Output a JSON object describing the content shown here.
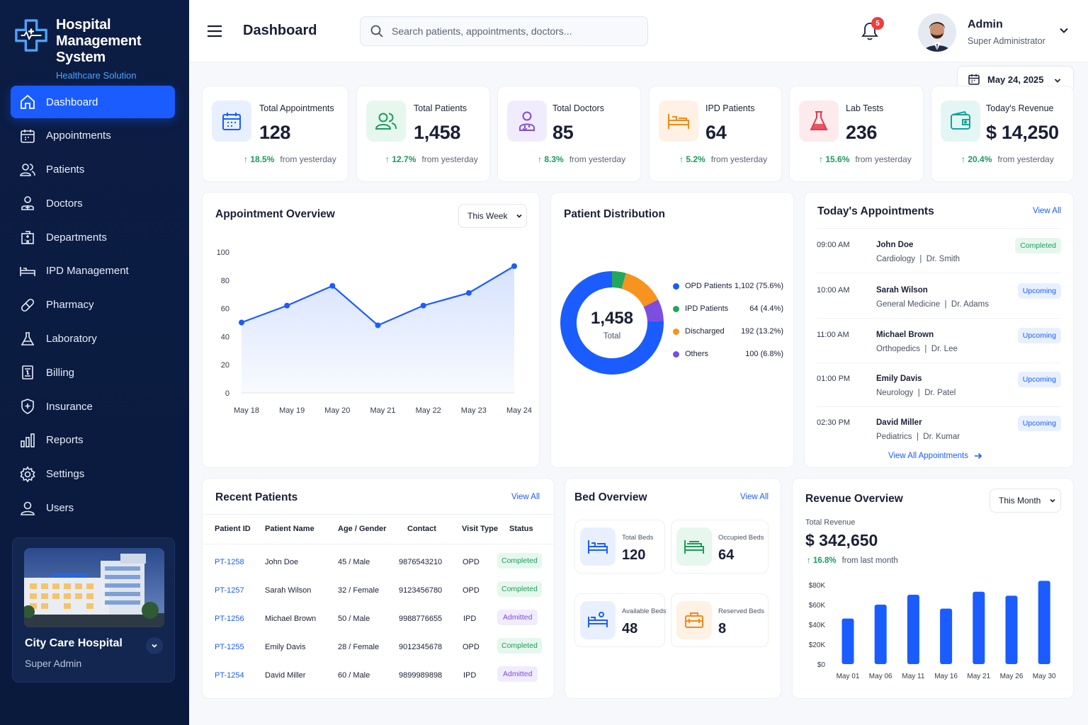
{
  "app": {
    "title_line1": "Hospital",
    "title_line2": "Management System",
    "subtitle": "Healthcare Solution"
  },
  "sidebar": {
    "items": [
      {
        "label": "Dashboard",
        "icon": "home-icon"
      },
      {
        "label": "Appointments",
        "icon": "calendar-icon"
      },
      {
        "label": "Patients",
        "icon": "users-icon"
      },
      {
        "label": "Doctors",
        "icon": "doctor-icon"
      },
      {
        "label": "Departments",
        "icon": "building-icon"
      },
      {
        "label": "IPD Management",
        "icon": "bed-icon"
      },
      {
        "label": "Pharmacy",
        "icon": "pill-icon"
      },
      {
        "label": "Laboratory",
        "icon": "flask-icon"
      },
      {
        "label": "Billing",
        "icon": "invoice-icon"
      },
      {
        "label": "Insurance",
        "icon": "shield-icon"
      },
      {
        "label": "Reports",
        "icon": "bar-chart-icon"
      },
      {
        "label": "Settings",
        "icon": "gear-icon"
      },
      {
        "label": "Users",
        "icon": "user-icon"
      }
    ],
    "hospital": {
      "name": "City Care Hospital",
      "role": "Super Admin"
    }
  },
  "header": {
    "page_title": "Dashboard",
    "search_placeholder": "Search patients, appointments, doctors...",
    "notifications": "5",
    "user_name": "Admin",
    "user_role": "Super Administrator",
    "date": "May 24, 2025"
  },
  "stats": [
    {
      "label": "Total Appointments",
      "value": "128",
      "trend": "18.5%",
      "trend_text": "from yesterday",
      "color": "#1a5cff"
    },
    {
      "label": "Total Patients",
      "value": "1,458",
      "trend": "12.7%",
      "trend_text": "from yesterday",
      "color": "#1d9c5a"
    },
    {
      "label": "Total Doctors",
      "value": "85",
      "trend": "8.3%",
      "trend_text": "from yesterday",
      "color": "#7c4dde"
    },
    {
      "label": "IPD Patients",
      "value": "64",
      "trend": "5.2%",
      "trend_text": "from yesterday",
      "color": "#f08a1c"
    },
    {
      "label": "Lab Tests",
      "value": "236",
      "trend": "15.6%",
      "trend_text": "from yesterday",
      "color": "#e5394a"
    },
    {
      "label": "Today's Revenue",
      "value": "$ 14,250",
      "trend": "20.4%",
      "trend_text": "from yesterday",
      "color": "#14a39a"
    }
  ],
  "appointment_overview": {
    "title": "Appointment Overview",
    "range": "This Week"
  },
  "patient_distribution": {
    "title": "Patient Distribution",
    "total": "1,458",
    "total_label": "Total",
    "legend": [
      {
        "label": "OPD Patients",
        "value": "1,102 (75.6%)",
        "color": "#1a5cff"
      },
      {
        "label": "IPD Patients",
        "value": "64 (4.4%)",
        "color": "#22a75e"
      },
      {
        "label": "Discharged",
        "value": "192 (13.2%)",
        "color": "#f7931e"
      },
      {
        "label": "Others",
        "value": "100 (6.8%)",
        "color": "#7c4dde"
      }
    ]
  },
  "todays_appointments": {
    "title": "Today's Appointments",
    "view_all": "View All",
    "footer": "View All Appointments",
    "items": [
      {
        "time": "09:00 AM",
        "name": "John Doe",
        "dept": "Cardiology",
        "doctor": "Dr. Smith",
        "status": "Completed"
      },
      {
        "time": "10:00 AM",
        "name": "Sarah Wilson",
        "dept": "General Medicine",
        "doctor": "Dr. Adams",
        "status": "Upcoming"
      },
      {
        "time": "11:00 AM",
        "name": "Michael Brown",
        "dept": "Orthopedics",
        "doctor": "Dr. Lee",
        "status": "Upcoming"
      },
      {
        "time": "01:00 PM",
        "name": "Emily Davis",
        "dept": "Neurology",
        "doctor": "Dr. Patel",
        "status": "Upcoming"
      },
      {
        "time": "02:30 PM",
        "name": "David Miller",
        "dept": "Pediatrics",
        "doctor": "Dr. Kumar",
        "status": "Upcoming"
      }
    ]
  },
  "recent_patients": {
    "title": "Recent Patients",
    "view_all": "View All",
    "columns": [
      "Patient ID",
      "Patient Name",
      "Age / Gender",
      "Contact",
      "Visit Type",
      "Status"
    ],
    "rows": [
      {
        "id": "PT-1258",
        "name": "John Doe",
        "age": "45 / Male",
        "contact": "9876543210",
        "visit": "OPD",
        "status": "Completed"
      },
      {
        "id": "PT-1257",
        "name": "Sarah Wilson",
        "age": "32 / Female",
        "contact": "9123456780",
        "visit": "OPD",
        "status": "Completed"
      },
      {
        "id": "PT-1256",
        "name": "Michael Brown",
        "age": "50 / Male",
        "contact": "9988776655",
        "visit": "IPD",
        "status": "Admitted"
      },
      {
        "id": "PT-1255",
        "name": "Emily Davis",
        "age": "28 / Female",
        "contact": "9012345678",
        "visit": "OPD",
        "status": "Completed"
      },
      {
        "id": "PT-1254",
        "name": "David Miller",
        "age": "60 / Male",
        "contact": "9899989898",
        "visit": "IPD",
        "status": "Admitted"
      }
    ]
  },
  "bed_overview": {
    "title": "Bed Overview",
    "view_all": "View All",
    "items": [
      {
        "label": "Total Beds",
        "value": "120",
        "color": "#1a5cff"
      },
      {
        "label": "Occupied Beds",
        "value": "64",
        "color": "#1d9c5a"
      },
      {
        "label": "Available Beds",
        "value": "48",
        "color": "#1a5cff"
      },
      {
        "label": "Reserved Beds",
        "value": "8",
        "color": "#f08a1c"
      }
    ]
  },
  "revenue_overview": {
    "title": "Revenue Overview",
    "range": "This Month",
    "total_label": "Total Revenue",
    "total": "$ 342,650",
    "trend": "16.8%",
    "trend_text": "from last month"
  },
  "chart_data": [
    {
      "type": "area",
      "x": [
        "May 18",
        "May 19",
        "May 20",
        "May 21",
        "May 22",
        "May 23",
        "May 24"
      ],
      "values": [
        50,
        62,
        76,
        48,
        62,
        71,
        90
      ],
      "ylim": [
        0,
        100
      ],
      "yticks": [
        0,
        20,
        40,
        60,
        80,
        100
      ],
      "grid": false,
      "color": "#1a5cff"
    },
    {
      "type": "pie",
      "categories": [
        "OPD Patients",
        "IPD Patients",
        "Discharged",
        "Others"
      ],
      "values": [
        1102,
        64,
        192,
        100
      ]
    },
    {
      "type": "bar",
      "categories": [
        "May 01",
        "May 06",
        "May 11",
        "May 16",
        "May 21",
        "May 26",
        "May 30"
      ],
      "values": [
        46000,
        60000,
        70000,
        56000,
        73000,
        69000,
        84000
      ],
      "ylim": [
        0,
        80000
      ],
      "yticks": [
        "$0",
        "$20K",
        "$40K",
        "$60K",
        "$80K"
      ],
      "color": "#1a5cff"
    }
  ]
}
